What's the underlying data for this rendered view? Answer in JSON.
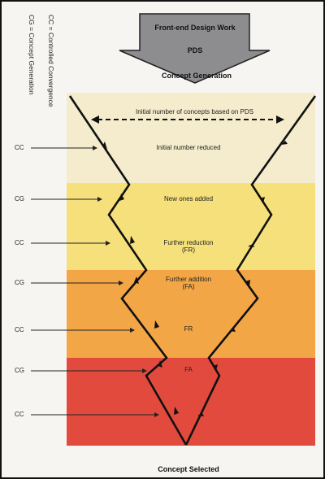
{
  "legend": {
    "cc": "CC = Controlled Convergence",
    "cg": "CG = Concept Generation"
  },
  "header": {
    "arrow_title": "Front-end Design Work",
    "arrow_sub": "PDS",
    "concept_generation": "Concept Generation",
    "concept_selected": "Concept Selected"
  },
  "funnel": {
    "initial_note": "Initial number of concepts based on PDS",
    "stages": [
      {
        "side": "CC",
        "text": "Initial number reduced"
      },
      {
        "side": "CG",
        "text": "New ones added"
      },
      {
        "side": "CC",
        "text": "Further reduction\n(FR)"
      },
      {
        "side": "CG",
        "text": "Further addition\n(FA)"
      },
      {
        "side": "CC",
        "text": "FR"
      },
      {
        "side": "CG",
        "text": "FA"
      },
      {
        "side": "CC",
        "text": ""
      }
    ],
    "colors": {
      "band1": "#f4eccc",
      "band2": "#f6e07c",
      "band3": "#f3a645",
      "band4": "#e24a3e",
      "line": "#111111"
    }
  }
}
